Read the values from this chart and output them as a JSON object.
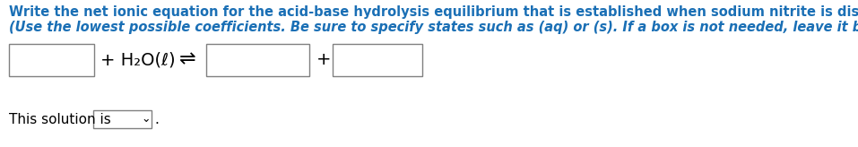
{
  "line1": "Write the net ionic equation for the acid-base hydrolysis equilibrium that is established when sodium nitrite is dissolved in water.",
  "line2": "(Use the lowest possible coefficients. Be sure to specify states such as (aq) or (s). If a box is not needed, leave it blank.)",
  "h2o_text": "+ H₂O(ℓ)",
  "plus_sign": "+",
  "equilibrium_arrow": "⇌",
  "this_solution_text": "This solution is",
  "period": ".",
  "dropdown_arrow": "⌄",
  "background_color": "#ffffff",
  "text_color": "#000000",
  "line1_color": "#1a6fb5",
  "line2_color": "#1a6fb5",
  "body_text_color": "#000000",
  "box_edge_color": "#808080",
  "box_fill_color": "#ffffff",
  "dropdown_color": "#ffffff",
  "line1_fontsize": 10.5,
  "line2_fontsize": 10.5,
  "equation_fontsize": 14,
  "body_fontsize": 11.0,
  "dropdown_fontsize": 10.0
}
